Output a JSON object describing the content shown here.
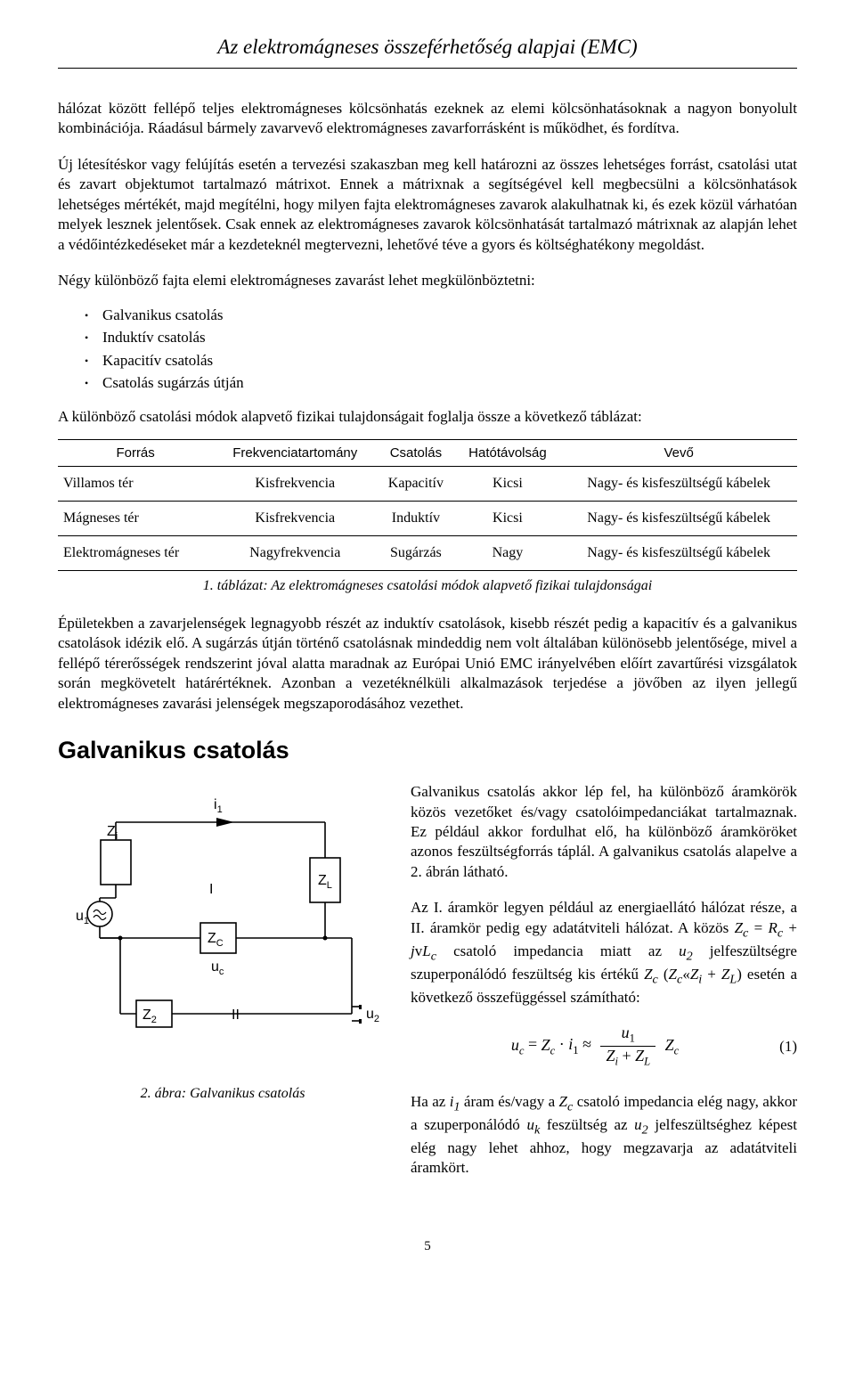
{
  "running_title": "Az elektromágneses összeférhetőség alapjai (EMC)",
  "para1": "hálózat között fellépő teljes elektromágneses kölcsönhatás ezeknek az elemi kölcsönhatásoknak a nagyon bonyolult kombinációja. Ráadásul bármely zavarvevő elektromágneses zavarforrásként is működhet, és fordítva.",
  "para2": "Új létesítéskor vagy felújítás esetén a tervezési szakaszban meg kell határozni az összes lehetséges forrást, csatolási utat és zavart objektumot tartalmazó mátrixot. Ennek a mátrixnak a segítségével kell megbecsülni a kölcsönhatások lehetséges mértékét, majd megítélni, hogy milyen fajta elektromágneses zavarok alakulhatnak ki, és ezek közül várhatóan melyek lesznek jelentősek. Csak ennek az elektromágneses zavarok kölcsönhatását tartalmazó mátrixnak az alapján lehet a védőintézkedéseket már a kezdeteknél megtervezni, lehetővé téve a gyors és költséghatékony megoldást.",
  "para3": "Négy különböző fajta elemi elektromágneses zavarást lehet megkülönböztetni:",
  "bullets": [
    "Galvanikus csatolás",
    "Induktív csatolás",
    "Kapacitív csatolás",
    "Csatolás sugárzás útján"
  ],
  "para4": "A különböző csatolási módok alapvető fizikai tulajdonságait foglalja össze a következő táblázat:",
  "table": {
    "columns": [
      "Forrás",
      "Frekvenciatartomány",
      "Csatolás",
      "Hatótávolság",
      "Vevő"
    ],
    "rows": [
      [
        "Villamos tér",
        "Kisfrekvencia",
        "Kapacitív",
        "Kicsi",
        "Nagy- és kisfeszültségű kábelek"
      ],
      [
        "Mágneses tér",
        "Kisfrekvencia",
        "Induktív",
        "Kicsi",
        "Nagy- és kisfeszültségű kábelek"
      ],
      [
        "Elektromágneses tér",
        "Nagyfrekvencia",
        "Sugárzás",
        "Nagy",
        "Nagy- és kisfeszültségű kábelek"
      ]
    ]
  },
  "table_caption": "1. táblázat: Az elektromágneses csatolási módok alapvető fizikai tulajdonságai",
  "para5": "Épületekben a zavarjelenségek legnagyobb részét az induktív csatolások, kisebb részét pedig a kapacitív és a galvanikus csatolások idézik elő. A sugárzás útján történő csatolásnak mindeddig nem volt általában különösebb jelentősége, mivel a fellépő térerősségek rendszerint jóval alatta maradnak az Európai Unió EMC irányelvében előírt zavartűrési vizsgálatok során megkövetelt határértéknek. Azonban a vezetéknélküli alkalmazások terjedése a jövőben az ilyen jellegű elektromágneses zavarási jelenségek megszaporodásához vezethet.",
  "section_heading": "Galvanikus csatolás",
  "para6": "Galvanikus csatolás akkor lép fel, ha különböző áramkörök közös vezetőket és/vagy csatolóimpedanciákat tartalmaznak. Ez például akkor fordulhat elő, ha különböző áramköröket azonos feszültségforrás táplál. A galvanikus csatolás alapelve a 2. ábrán látható.",
  "para7_html": "Az I. áramkör legyen például az energiaellátó hálózat része, a II. áramkör pedig egy adatátviteli hálózat. A közös <i>Z<sub>c</sub></i> = <i>R<sub>c</sub></i> + <i>j</i>v<i>L<sub>c</sub></i> csatoló impedancia miatt az <i>u<sub>2</sub></i> jelfeszültségre szuperponálódó feszültség kis értékű <i>Z<sub>c</sub></i> (<i>Z<sub>c</sub></i>«<i>Z<sub>i</sub></i> + <i>Z<sub>L</sub></i>) esetén a következő összefüggéssel számítható:",
  "equation_number": "(1)",
  "para8_html": "Ha az <i>i<sub>1</sub></i> áram és/vagy a <i>Z<sub>c</sub></i> csatoló impedancia elég nagy, akkor a szuperponálódó <i>u<sub>k</sub></i> feszültség az <i>u<sub>2</sub></i> jelfeszültséghez képest elég nagy lehet ahhoz, hogy megzavarja az adatátviteli áramkört.",
  "fig_caption": "2. ábra: Galvanikus csatolás",
  "page_number": "5",
  "circuit": {
    "labels": {
      "i1": "i1",
      "Zi": "Zi",
      "I": "I",
      "ZL": "ZL",
      "u1": "u1",
      "Zc": "ZC",
      "uc": "uc",
      "Z2": "Z2",
      "II": "II",
      "u2": "u2"
    },
    "stroke": "#000000",
    "stroke_width": 1.6
  },
  "colors": {
    "text": "#000000",
    "bg": "#ffffff",
    "rule": "#000000"
  }
}
